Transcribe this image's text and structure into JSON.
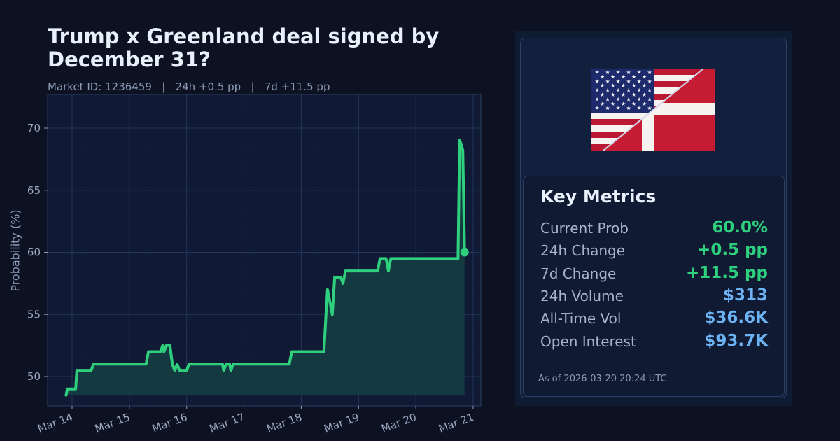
{
  "header": {
    "title": "Trump x Greenland deal signed by December 31?",
    "subtitle": "Market ID: 1236459   |   24h +0.5 pp   |   7d +11.5 pp",
    "market_id": "1236459",
    "change_24h": "24h +0.5 pp",
    "change_7d": "7d +11.5 pp"
  },
  "chart_data": {
    "type": "area",
    "title": "Trump x Greenland deal signed by December 31?",
    "xlabel": "",
    "ylabel": "Probability (%)",
    "ylim": [
      47.6,
      72.7
    ],
    "grid": true,
    "yticks": [
      50,
      55,
      60,
      65,
      70
    ],
    "xticks": [
      "Mar 14",
      "Mar 15",
      "Mar 16",
      "Mar 17",
      "Mar 18",
      "Mar 19",
      "Mar 20",
      "Mar 21"
    ],
    "line_color": "#2ecf7d",
    "fill_color": "#163b42",
    "series": [
      {
        "name": "Probability",
        "points": [
          [
            "Mar 13 21:30",
            48.5
          ],
          [
            "Mar 13 22:00",
            49.0
          ],
          [
            "Mar 14 01:30",
            49.0
          ],
          [
            "Mar 14 02:00",
            50.5
          ],
          [
            "Mar 14 08:00",
            50.5
          ],
          [
            "Mar 14 09:00",
            51.0
          ],
          [
            "Mar 15 07:00",
            51.0
          ],
          [
            "Mar 15 08:00",
            52.0
          ],
          [
            "Mar 15 13:00",
            52.0
          ],
          [
            "Mar 15 14:00",
            52.5
          ],
          [
            "Mar 15 14:30",
            52.0
          ],
          [
            "Mar 15 15:30",
            52.5
          ],
          [
            "Mar 15 17:00",
            52.5
          ],
          [
            "Mar 15 18:00",
            51.0
          ],
          [
            "Mar 15 19:00",
            50.5
          ],
          [
            "Mar 15 20:00",
            51.0
          ],
          [
            "Mar 15 21:00",
            50.5
          ],
          [
            "Mar 16 00:00",
            50.5
          ],
          [
            "Mar 16 01:00",
            51.0
          ],
          [
            "Mar 16 15:00",
            51.0
          ],
          [
            "Mar 16 15:30",
            50.5
          ],
          [
            "Mar 16 16:30",
            51.0
          ],
          [
            "Mar 16 18:00",
            51.0
          ],
          [
            "Mar 16 18:30",
            50.5
          ],
          [
            "Mar 16 19:30",
            51.0
          ],
          [
            "Mar 17 19:00",
            51.0
          ],
          [
            "Mar 17 20:00",
            52.0
          ],
          [
            "Mar 18 09:30",
            52.0
          ],
          [
            "Mar 18 10:30",
            55.5
          ],
          [
            "Mar 18 11:00",
            57.0
          ],
          [
            "Mar 18 13:00",
            55.0
          ],
          [
            "Mar 18 14:00",
            58.0
          ],
          [
            "Mar 18 16:30",
            58.0
          ],
          [
            "Mar 18 17:30",
            57.5
          ],
          [
            "Mar 18 18:30",
            58.5
          ],
          [
            "Mar 19 08:00",
            58.5
          ],
          [
            "Mar 19 09:00",
            59.5
          ],
          [
            "Mar 19 11:30",
            59.5
          ],
          [
            "Mar 19 12:30",
            58.5
          ],
          [
            "Mar 19 13:30",
            59.5
          ],
          [
            "Mar 20 17:40",
            59.5
          ],
          [
            "Mar 20 18:20",
            69.0
          ],
          [
            "Mar 20 19:00",
            68.7
          ],
          [
            "Mar 20 19:40",
            68.2
          ],
          [
            "Mar 20 20:24",
            60.0
          ]
        ]
      }
    ],
    "last_point": {
      "x": "Mar 20 20:24",
      "y": 60.0
    }
  },
  "panel": {
    "flag_icon": "us-denmark-split-flag",
    "metrics_title": "Key Metrics",
    "metrics": [
      {
        "label": "Current Prob",
        "value": "60.0%",
        "color": "#2ecf7d"
      },
      {
        "label": "24h Change",
        "value": "+0.5 pp",
        "color": "#2ecf7d"
      },
      {
        "label": "7d Change",
        "value": "+11.5 pp",
        "color": "#2ecf7d"
      },
      {
        "label": "24h Volume",
        "value": "$313",
        "color": "#6cb4f5"
      },
      {
        "label": "All-Time Vol",
        "value": "$36.6K",
        "color": "#6cb4f5"
      },
      {
        "label": "Open Interest",
        "value": "$93.7K",
        "color": "#6cb4f5"
      }
    ],
    "as_of": "As of 2026-03-20 20:24 UTC"
  }
}
